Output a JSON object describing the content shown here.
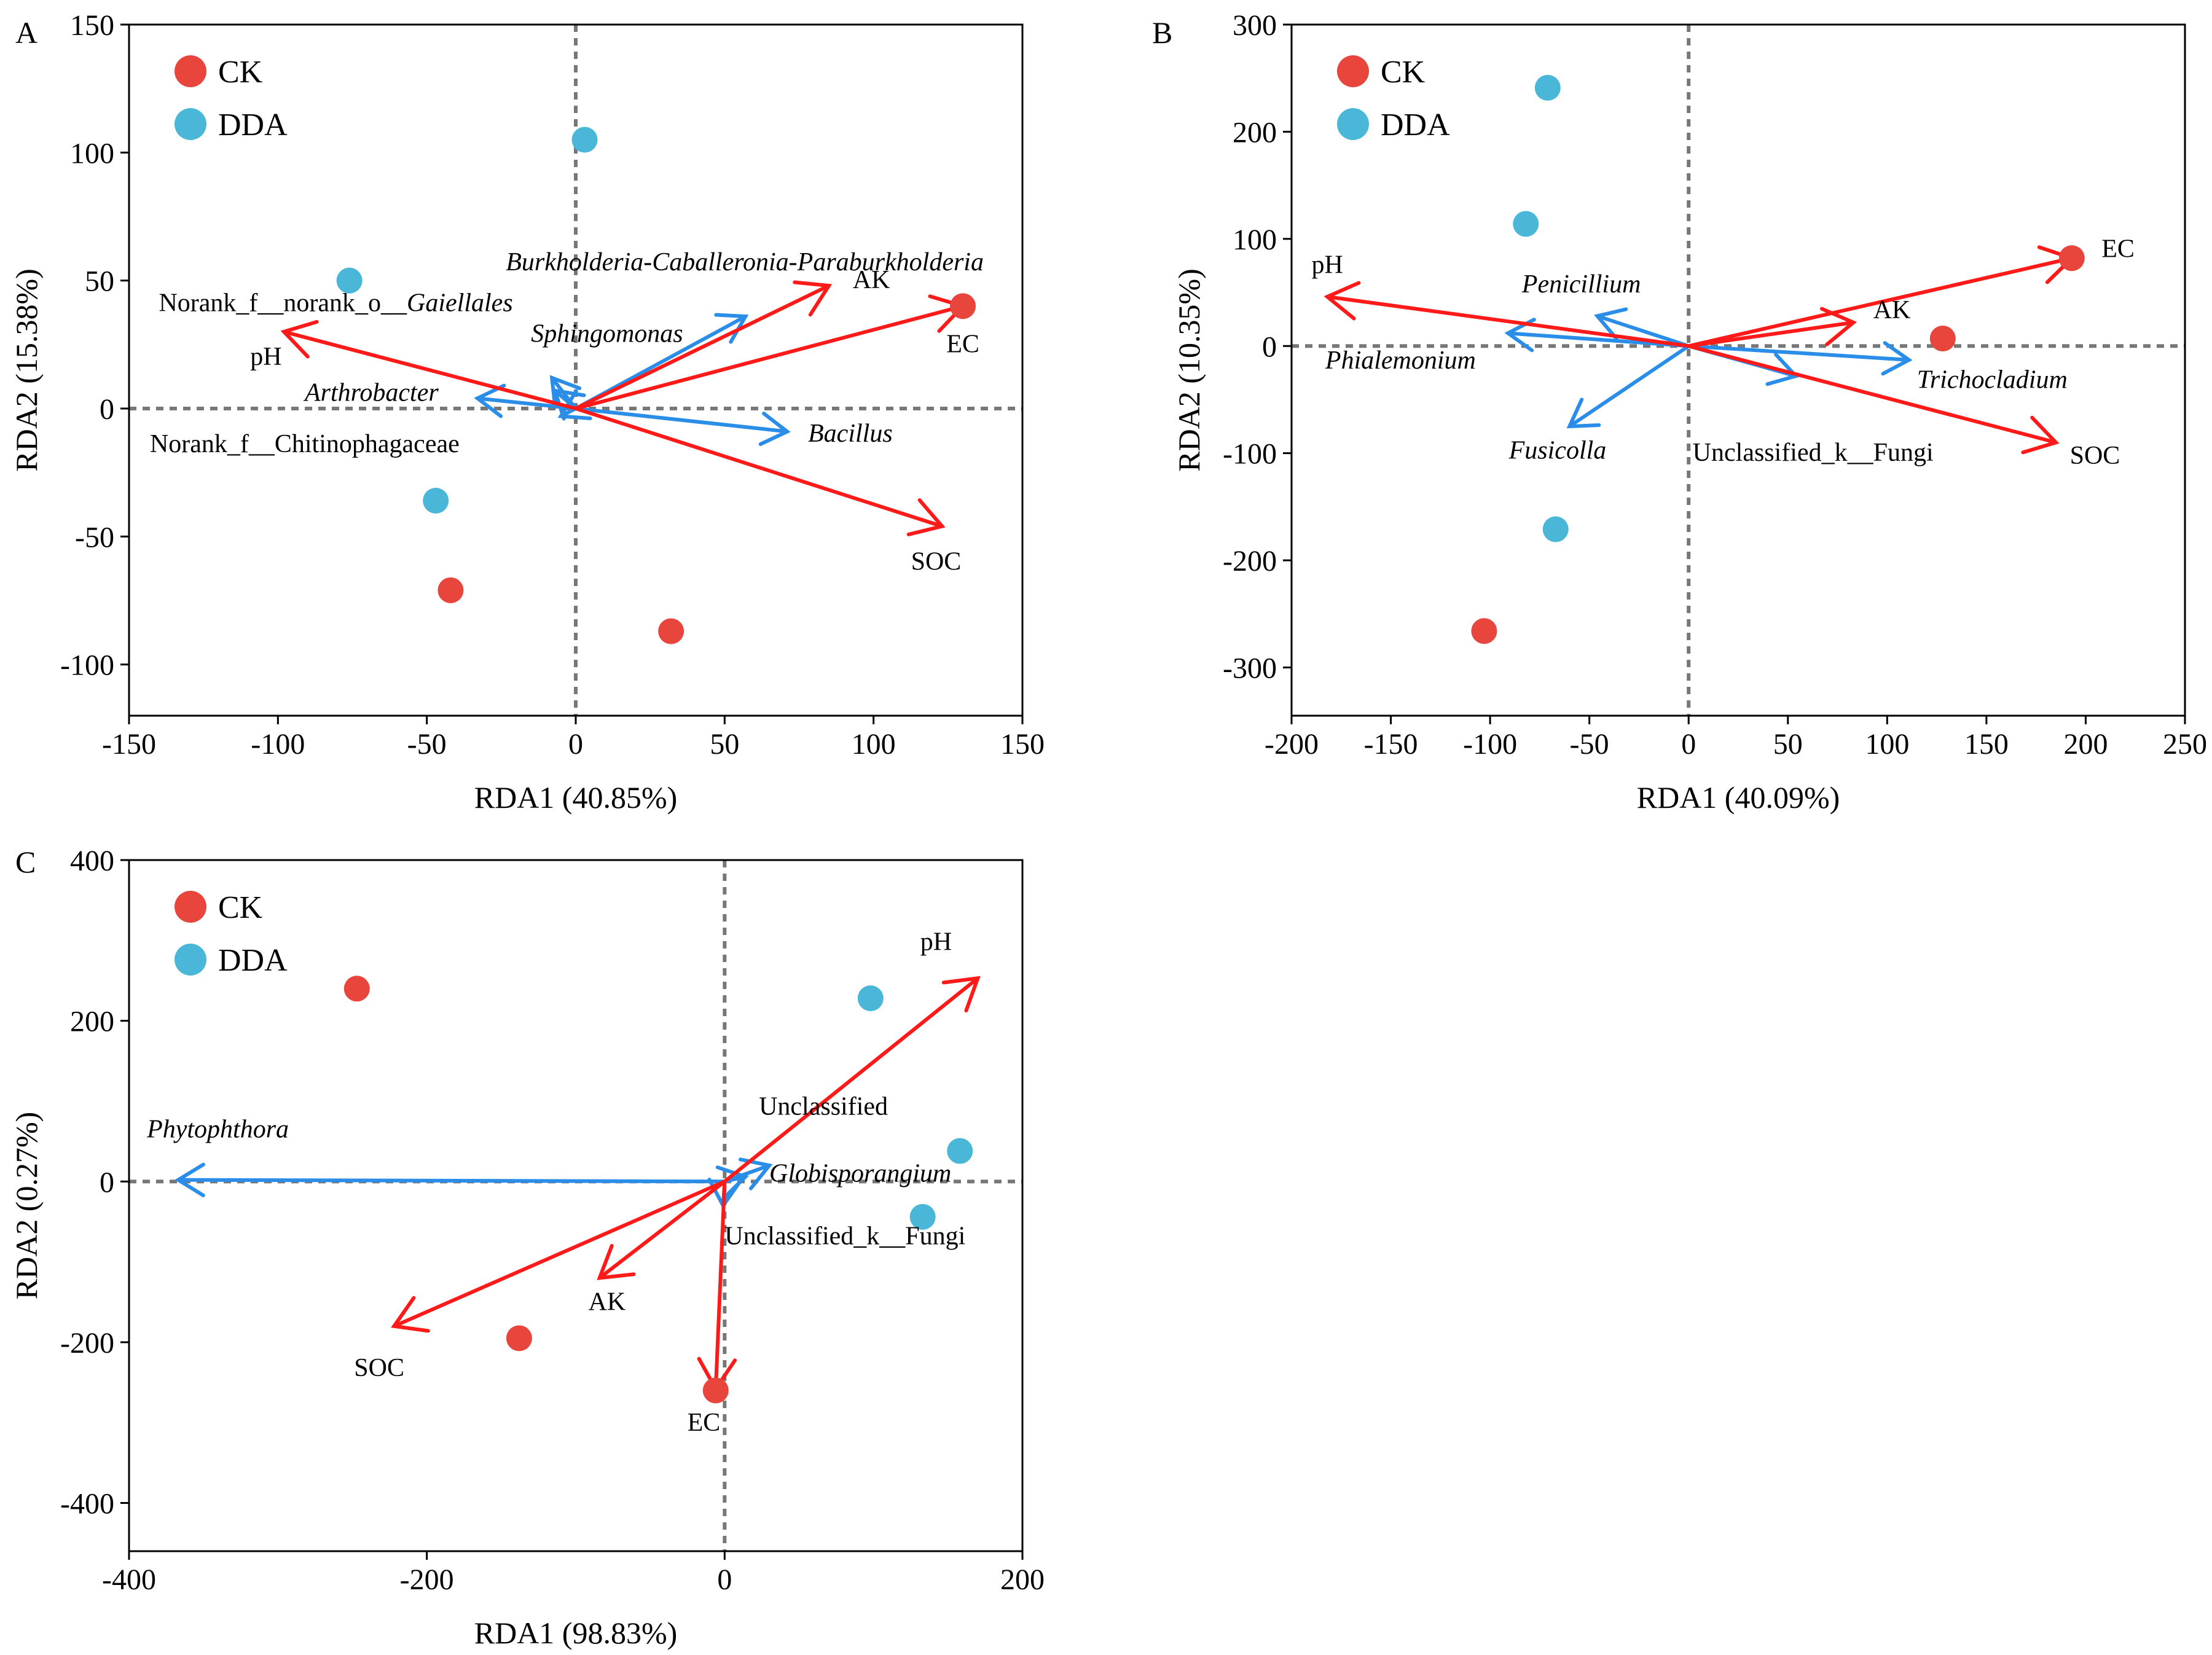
{
  "colors": {
    "ck": "#e8453c",
    "dda": "#4ab7d8",
    "env_arrow": "#ff1a1a",
    "taxa_arrow": "#2a8de8",
    "zero_line": "#777777"
  },
  "legend": {
    "ck": "CK",
    "dda": "DDA"
  },
  "chart_data": [
    {
      "type": "scatter",
      "panel": "A",
      "xlabel": "RDA1 (40.85%)",
      "ylabel": "RDA2 (15.38%)",
      "xlim": [
        -150,
        150
      ],
      "ylim": [
        -120,
        150
      ],
      "xticks": [
        -150,
        -100,
        -50,
        0,
        50,
        100,
        150
      ],
      "yticks": [
        -100,
        -50,
        0,
        50,
        100,
        150
      ],
      "series": [
        {
          "name": "CK",
          "points": [
            [
              130,
              40
            ],
            [
              -42,
              -71
            ],
            [
              32,
              -87
            ]
          ]
        },
        {
          "name": "DDA",
          "points": [
            [
              3,
              105
            ],
            [
              -76,
              50
            ],
            [
              -47,
              -36
            ]
          ]
        }
      ],
      "env_arrows": [
        {
          "label": "AK",
          "x": 85,
          "y": 48,
          "lx": 93,
          "ly": 47,
          "anchor": "start",
          "italic": false
        },
        {
          "label": "EC",
          "x": 130,
          "y": 40,
          "lx": 130,
          "ly": 22,
          "anchor": "middle",
          "italic": false
        },
        {
          "label": "pH",
          "x": -98,
          "y": 30,
          "lx": -104,
          "ly": 17,
          "anchor": "middle",
          "italic": false
        },
        {
          "label": "SOC",
          "x": 123,
          "y": -46,
          "lx": 121,
          "ly": -63,
          "anchor": "middle",
          "italic": false
        }
      ],
      "taxa_arrows": [
        {
          "label": "Burkholderia-Caballeronia-Paraburkholderia",
          "x": 57,
          "y": 36,
          "lx": 137,
          "ly": 54,
          "anchor": "end",
          "italic": true
        },
        {
          "label": "Sphingomonas",
          "x": -8,
          "y": 12,
          "lx": -15,
          "ly": 26,
          "anchor": "start",
          "italic": true
        },
        {
          "label": "Norank_f__norank_o__",
          "label_italic": "Gaiellales",
          "x": -7,
          "y": 7,
          "lx": -140,
          "ly": 38,
          "anchor": "start",
          "italic": false
        },
        {
          "label": "Arthrobacter",
          "x": -33,
          "y": 4,
          "lx": -91,
          "ly": 3,
          "anchor": "start",
          "italic": true
        },
        {
          "label": "Norank_f__Chitinophagaceae",
          "x": -5,
          "y": -3,
          "lx": -143,
          "ly": -17,
          "anchor": "start",
          "italic": false
        },
        {
          "label": "Bacillus",
          "x": 71,
          "y": -9,
          "lx": 78,
          "ly": -13,
          "anchor": "start",
          "italic": true
        }
      ]
    },
    {
      "type": "scatter",
      "panel": "B",
      "xlabel": "RDA1 (40.09%)",
      "ylabel": "RDA2 (10.35%)",
      "xlim": [
        -200,
        250
      ],
      "ylim": [
        -345,
        300
      ],
      "xticks": [
        -200,
        -150,
        -100,
        -50,
        0,
        50,
        100,
        150,
        200,
        250
      ],
      "yticks": [
        -300,
        -200,
        -100,
        0,
        100,
        200,
        300
      ],
      "series": [
        {
          "name": "CK",
          "points": [
            [
              193,
              82
            ],
            [
              128,
              7
            ],
            [
              -103,
              -266
            ]
          ]
        },
        {
          "name": "DDA",
          "points": [
            [
              -71,
              241
            ],
            [
              -82,
              114
            ],
            [
              -67,
              -171
            ]
          ]
        }
      ],
      "env_arrows": [
        {
          "label": "EC",
          "x": 193,
          "y": 82,
          "lx": 208,
          "ly": 83,
          "anchor": "start",
          "italic": false
        },
        {
          "label": "AK",
          "x": 83,
          "y": 22,
          "lx": 93,
          "ly": 26,
          "anchor": "start",
          "italic": false
        },
        {
          "label": "pH",
          "x": -182,
          "y": 46,
          "lx": -182,
          "ly": 68,
          "anchor": "middle",
          "italic": false
        },
        {
          "label": "SOC",
          "x": 185,
          "y": -90,
          "lx": 192,
          "ly": -110,
          "anchor": "start",
          "italic": false
        }
      ],
      "taxa_arrows": [
        {
          "label": "Penicillium",
          "x": -46,
          "y": 28,
          "lx": -84,
          "ly": 50,
          "anchor": "start",
          "italic": true
        },
        {
          "label": "Phialemonium",
          "x": -91,
          "y": 12,
          "lx": -183,
          "ly": -21,
          "anchor": "start",
          "italic": true
        },
        {
          "label": "Trichocladium",
          "x": 111,
          "y": -13,
          "lx": 115,
          "ly": -39,
          "anchor": "start",
          "italic": true
        },
        {
          "label": "Unclassified_k__Fungi",
          "x": 54,
          "y": -28,
          "lx": 2,
          "ly": -107,
          "anchor": "start",
          "italic": false
        },
        {
          "label": "Fusicolla",
          "x": -60,
          "y": -75,
          "lx": -66,
          "ly": -105,
          "anchor": "middle",
          "italic": true
        }
      ]
    },
    {
      "type": "scatter",
      "panel": "C",
      "xlabel": "RDA1 (98.83%)",
      "ylabel": "RDA2 (0.27%)",
      "xlim": [
        -400,
        200
      ],
      "ylim": [
        -460,
        400
      ],
      "xticks": [
        -400,
        -200,
        0,
        200
      ],
      "yticks": [
        -400,
        -200,
        0,
        200,
        400
      ],
      "series": [
        {
          "name": "CK",
          "points": [
            [
              -247,
              240
            ],
            [
              -138,
              -195
            ],
            [
              -6,
              -260
            ]
          ]
        },
        {
          "name": "DDA",
          "points": [
            [
              98,
              228
            ],
            [
              158,
              38
            ],
            [
              133,
              -44
            ]
          ]
        }
      ],
      "env_arrows": [
        {
          "label": "pH",
          "x": 170,
          "y": 253,
          "lx": 142,
          "ly": 288,
          "anchor": "middle",
          "italic": false
        },
        {
          "label": "SOC",
          "x": -222,
          "y": -180,
          "lx": -232,
          "ly": -242,
          "anchor": "middle",
          "italic": false
        },
        {
          "label": "AK",
          "x": -84,
          "y": -120,
          "lx": -79,
          "ly": -160,
          "anchor": "middle",
          "italic": false
        },
        {
          "label": "EC",
          "x": -6,
          "y": -258,
          "lx": -14,
          "ly": -310,
          "anchor": "middle",
          "italic": false
        }
      ],
      "taxa_arrows": [
        {
          "label": "Phytophthora",
          "x": -367,
          "y": 2,
          "lx": -388,
          "ly": 55,
          "anchor": "start",
          "italic": true
        },
        {
          "label": "Unclassified",
          "x": 14,
          "y": 6,
          "lx": 23,
          "ly": 83,
          "anchor": "start",
          "italic": false
        },
        {
          "label": "Globisporangium",
          "x": 30,
          "y": 20,
          "lx": 30,
          "ly": 0,
          "anchor": "start",
          "italic": true
        },
        {
          "label": "Unclassified_k__Fungi",
          "x": -1,
          "y": -30,
          "lx": 0,
          "ly": -78,
          "anchor": "start",
          "italic": false
        }
      ]
    }
  ]
}
